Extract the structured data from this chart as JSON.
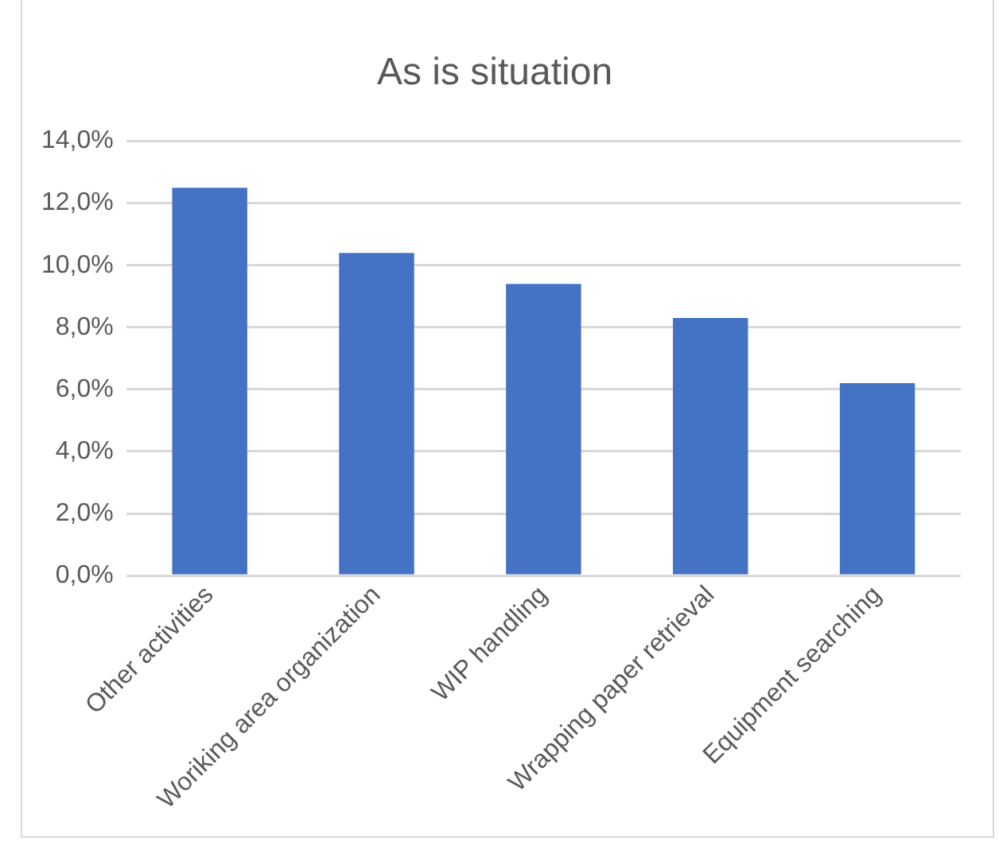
{
  "chart_data": {
    "type": "bar",
    "title": "As is situation",
    "categories": [
      "Other activities",
      "Woriking area organization",
      "WIP handling",
      "Wrapping paper retrieval",
      "Equipment searching"
    ],
    "values": [
      12.5,
      10.4,
      9.4,
      8.3,
      6.2
    ],
    "color": "#4472c4",
    "ylim": [
      0,
      14
    ],
    "yticks": [
      {
        "value": 0,
        "label": "0,0%"
      },
      {
        "value": 2,
        "label": "2,0%"
      },
      {
        "value": 4,
        "label": "4,0%"
      },
      {
        "value": 6,
        "label": "6,0%"
      },
      {
        "value": 8,
        "label": "8,0%"
      },
      {
        "value": 10,
        "label": "10,0%"
      },
      {
        "value": 12,
        "label": "12,0%"
      },
      {
        "value": 14,
        "label": "14,0%"
      }
    ],
    "grid": "y"
  }
}
